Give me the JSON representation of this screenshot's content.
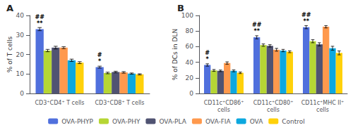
{
  "chart_data": [
    {
      "type": "bar",
      "title": "A",
      "ylabel": "% of T cells",
      "categories": [
        "CD3⁺CD4⁺ T cells",
        "CD3⁺CD8⁺ T cells"
      ],
      "series": [
        {
          "name": "OVA-PHYP",
          "values": [
            33.0,
            13.5
          ],
          "errors": [
            0.8,
            0.5
          ]
        },
        {
          "name": "OVA-PHY",
          "values": [
            22.0,
            10.5
          ],
          "errors": [
            0.6,
            0.4
          ]
        },
        {
          "name": "OVA-PLA",
          "values": [
            23.5,
            11.0
          ],
          "errors": [
            0.7,
            0.4
          ]
        },
        {
          "name": "OVA-FIA",
          "values": [
            23.5,
            10.8
          ],
          "errors": [
            0.5,
            0.4
          ]
        },
        {
          "name": "OVA",
          "values": [
            17.0,
            10.2
          ],
          "errors": [
            0.6,
            0.3
          ]
        },
        {
          "name": "Control",
          "values": [
            15.8,
            9.8
          ],
          "errors": [
            0.5,
            0.3
          ]
        }
      ],
      "ylim": [
        0,
        40
      ],
      "yticks": [
        0,
        10,
        20,
        30,
        40
      ],
      "grid": false,
      "legend": "bottom",
      "annotations": [
        {
          "category": "CD3⁺CD4⁺ T cells",
          "series": "OVA-PHYP",
          "text": "##\n**"
        },
        {
          "category": "CD3⁺CD8⁺ T cells",
          "series": "OVA-PHYP",
          "text": "#\n*"
        }
      ]
    },
    {
      "type": "bar",
      "title": "B",
      "ylabel": "% of DCs in DLN",
      "categories": [
        "CD11c⁺CD86⁺\ncells",
        "CD11c⁺CD80⁺\ncells",
        "CD11c⁺MHC II⁺\ncells"
      ],
      "series": [
        {
          "name": "OVA-PHYP",
          "values": [
            36.5,
            72.0,
            85.0
          ],
          "errors": [
            1.5,
            2.0,
            2.0
          ]
        },
        {
          "name": "OVA-PHY",
          "values": [
            29.5,
            62.0,
            67.0
          ],
          "errors": [
            1.2,
            1.5,
            2.0
          ]
        },
        {
          "name": "OVA-PLA",
          "values": [
            29.0,
            61.0,
            63.0
          ],
          "errors": [
            1.0,
            1.5,
            2.0
          ]
        },
        {
          "name": "OVA-FIA",
          "values": [
            39.0,
            56.0,
            85.5
          ],
          "errors": [
            1.5,
            1.8,
            1.5
          ]
        },
        {
          "name": "OVA",
          "values": [
            29.0,
            55.0,
            58.0
          ],
          "errors": [
            1.2,
            1.5,
            2.5
          ]
        },
        {
          "name": "Control",
          "values": [
            26.5,
            53.5,
            52.0
          ],
          "errors": [
            1.0,
            1.2,
            2.5
          ]
        }
      ],
      "ylim": [
        0,
        100
      ],
      "yticks": [
        0,
        20,
        40,
        60,
        80,
        100
      ],
      "grid": false,
      "legend": "bottom",
      "annotations": [
        {
          "category": "CD11c⁺CD86⁺\ncells",
          "series": "OVA-PHYP",
          "text": "#\n*"
        },
        {
          "category": "CD11c⁺CD80⁺\ncells",
          "series": "OVA-PHYP",
          "text": "##\n**"
        },
        {
          "category": "CD11c⁺MHC II⁺\ncells",
          "series": "OVA-PHYP",
          "text": "##\n**"
        }
      ]
    }
  ]
}
